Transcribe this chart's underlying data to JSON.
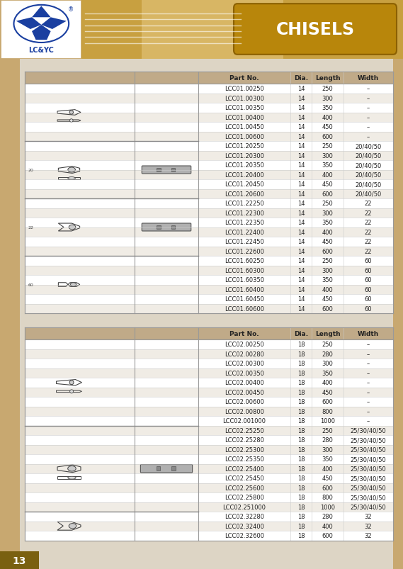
{
  "title": "CHISELS",
  "page_number": "13",
  "tan_color": "#c8a870",
  "gold_dark": "#b8860b",
  "gold_mid": "#c8a040",
  "logo_blue": "#1a3fa0",
  "body_bg": "#e8ddd0",
  "left_stripe": "#c8a870",
  "table_header_bg": "#c0aa88",
  "row_even": "#ffffff",
  "row_odd": "#f0ece5",
  "border_color": "#aaaaaa",
  "text_color": "#222222",
  "table1": {
    "columns": [
      "Part No.",
      "Dia.",
      "Length",
      "Width"
    ],
    "rows": [
      [
        "LCC01.00250",
        "14",
        "250",
        "–"
      ],
      [
        "LCC01.00300",
        "14",
        "300",
        "–"
      ],
      [
        "LCC01.00350",
        "14",
        "350",
        "–"
      ],
      [
        "LCC01.00400",
        "14",
        "400",
        "–"
      ],
      [
        "LCC01.00450",
        "14",
        "450",
        "–"
      ],
      [
        "LCC01.00600",
        "14",
        "600",
        "–"
      ],
      [
        "LCC01.20250",
        "14",
        "250",
        "20/40/50"
      ],
      [
        "LCC01.20300",
        "14",
        "300",
        "20/40/50"
      ],
      [
        "LCC01.20350",
        "14",
        "350",
        "20/40/50"
      ],
      [
        "LCC01.20400",
        "14",
        "400",
        "20/40/50"
      ],
      [
        "LCC01.20450",
        "14",
        "450",
        "20/40/50"
      ],
      [
        "LCC01.20600",
        "14",
        "600",
        "20/40/50"
      ],
      [
        "LCC01.22250",
        "14",
        "250",
        "22"
      ],
      [
        "LCC01.22300",
        "14",
        "300",
        "22"
      ],
      [
        "LCC01.22350",
        "14",
        "350",
        "22"
      ],
      [
        "LCC01.22400",
        "14",
        "400",
        "22"
      ],
      [
        "LCC01.22450",
        "14",
        "450",
        "22"
      ],
      [
        "LCC01.22600",
        "14",
        "600",
        "22"
      ],
      [
        "LCC01.60250",
        "14",
        "250",
        "60"
      ],
      [
        "LCC01.60300",
        "14",
        "300",
        "60"
      ],
      [
        "LCC01.60350",
        "14",
        "350",
        "60"
      ],
      [
        "LCC01.60400",
        "14",
        "400",
        "60"
      ],
      [
        "LCC01.60450",
        "14",
        "450",
        "60"
      ],
      [
        "LCC01.60600",
        "14",
        "600",
        "60"
      ]
    ],
    "group_sizes": [
      6,
      6,
      6,
      6
    ]
  },
  "table2": {
    "columns": [
      "Part No.",
      "Dia.",
      "Length",
      "Width"
    ],
    "rows": [
      [
        "LCC02.00250",
        "18",
        "250",
        "–"
      ],
      [
        "LCC02.00280",
        "18",
        "280",
        "–"
      ],
      [
        "LCC02.00300",
        "18",
        "300",
        "–"
      ],
      [
        "LCC02.00350",
        "18",
        "350",
        "–"
      ],
      [
        "LCC02.00400",
        "18",
        "400",
        "–"
      ],
      [
        "LCC02.00450",
        "18",
        "450",
        "–"
      ],
      [
        "LCC02.00600",
        "18",
        "600",
        "–"
      ],
      [
        "LCC02.00800",
        "18",
        "800",
        "–"
      ],
      [
        "LCC02.001000",
        "18",
        "1000",
        "–"
      ],
      [
        "LCC02.25250",
        "18",
        "250",
        "25/30/40/50"
      ],
      [
        "LCC02.25280",
        "18",
        "280",
        "25/30/40/50"
      ],
      [
        "LCC02.25300",
        "18",
        "300",
        "25/30/40/50"
      ],
      [
        "LCC02.25350",
        "18",
        "350",
        "25/30/40/50"
      ],
      [
        "LCC02.25400",
        "18",
        "400",
        "25/30/40/50"
      ],
      [
        "LCC02.25450",
        "18",
        "450",
        "25/30/40/50"
      ],
      [
        "LCC02.25600",
        "18",
        "600",
        "25/30/40/50"
      ],
      [
        "LCC02.25800",
        "18",
        "800",
        "25/30/40/50"
      ],
      [
        "LCC02.251000",
        "18",
        "1000",
        "25/30/40/50"
      ],
      [
        "LCC02.32280",
        "18",
        "280",
        "32"
      ],
      [
        "LCC02.32400",
        "18",
        "400",
        "32"
      ],
      [
        "LCC02.32600",
        "18",
        "600",
        "32"
      ]
    ],
    "group_sizes": [
      9,
      9,
      3
    ]
  }
}
